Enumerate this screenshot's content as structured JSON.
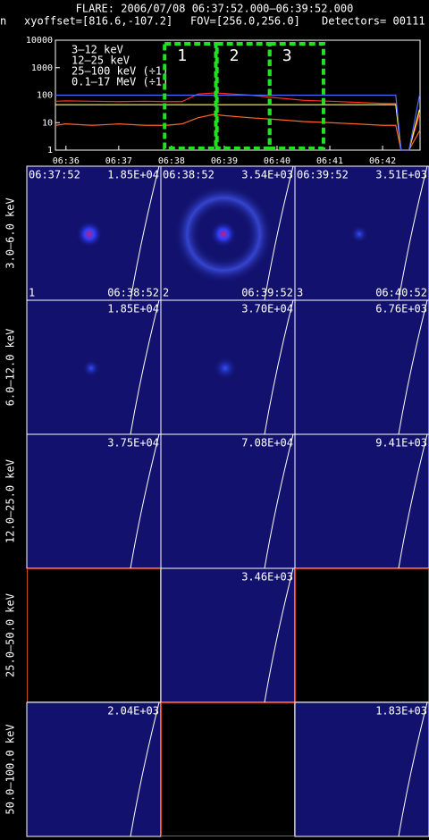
{
  "header": {
    "title": "FLARE: 2006/07/08 06:37:52.000–06:39:52.000",
    "prefix": "n",
    "xyoffset": "xyoffset=[816.6,-107.2]",
    "fov": "FOV=[256.0,256.0]",
    "detectors": "Detectors= 00111"
  },
  "chart_data": {
    "type": "line",
    "log_y": true,
    "xlim": [
      35.8,
      42.71
    ],
    "xticks": [
      {
        "value": 36,
        "label": "06:36"
      },
      {
        "value": 37,
        "label": "06:37"
      },
      {
        "value": 38,
        "label": "06:38"
      },
      {
        "value": 39,
        "label": "06:39"
      },
      {
        "value": 40,
        "label": "06:40"
      },
      {
        "value": 41,
        "label": "06:41"
      },
      {
        "value": 42,
        "label": "06:42"
      }
    ],
    "ylim": [
      1,
      10000
    ],
    "yticks": [
      1,
      10,
      100,
      1000,
      10000
    ],
    "x": [
      35.8,
      36,
      36.5,
      37,
      37.5,
      37.9,
      38.2,
      38.5,
      38.8,
      39,
      39.5,
      40,
      40.5,
      41,
      41.5,
      42,
      42.25,
      42.35,
      42.5,
      42.7
    ],
    "series": [
      {
        "name": "3–12 keV",
        "color": "#ff2a2a",
        "values": [
          60,
          62,
          60,
          58,
          60,
          58,
          58,
          110,
          120,
          115,
          100,
          80,
          65,
          60,
          55,
          50,
          50,
          1,
          1,
          20
        ]
      },
      {
        "name": "12–25 keV",
        "color": "#ff6428",
        "values": [
          8,
          9,
          8,
          9,
          8,
          8,
          9,
          15,
          20,
          18,
          15,
          13,
          11,
          10,
          9,
          8,
          8,
          1,
          1,
          5
        ]
      },
      {
        "name": "25–100 keV (÷1)",
        "color": "#ffff40",
        "values": [
          45,
          45,
          45,
          45,
          45,
          45,
          45,
          45,
          45,
          45,
          45,
          45,
          45,
          45,
          45,
          45,
          45,
          1,
          1,
          30
        ]
      },
      {
        "name": "0.1–17 MeV (÷1)",
        "color": "#4a6aff",
        "values": [
          100,
          100,
          100,
          100,
          100,
          100,
          100,
          100,
          100,
          100,
          100,
          100,
          100,
          100,
          100,
          100,
          100,
          1,
          1,
          100
        ]
      }
    ],
    "intervals": [
      {
        "label": "1",
        "start": 37.87,
        "end": 38.84
      },
      {
        "label": "2",
        "start": 38.86,
        "end": 39.86
      },
      {
        "label": "3",
        "start": 39.86,
        "end": 40.88
      }
    ]
  },
  "image_grid": {
    "row_labels": [
      "3.0–6.0 keV",
      "6.0–12.0 keV",
      "12.0–25.0 keV",
      "25.0–50.0 keV",
      "50.0–100.0 keV"
    ],
    "rows": [
      [
        {
          "peak": "1.85E+04",
          "start": "06:37:52",
          "end": "06:38:52",
          "index": "1"
        },
        {
          "peak": "3.54E+03",
          "start": "06:38:52",
          "end": "06:39:52",
          "index": "2"
        },
        {
          "peak": "3.51E+03",
          "start": "06:39:52",
          "end": "06:40:52",
          "index": "3"
        }
      ],
      [
        {
          "peak": "1.85E+04"
        },
        {
          "peak": "3.70E+04"
        },
        {
          "peak": "6.76E+03"
        }
      ],
      [
        {
          "peak": "3.75E+04"
        },
        {
          "peak": "7.08E+04"
        },
        {
          "peak": "9.41E+03"
        }
      ],
      [
        null,
        {
          "peak": "3.46E+03"
        },
        null
      ],
      [
        {
          "peak": "2.04E+03"
        },
        null,
        {
          "peak": "1.83E+03"
        }
      ]
    ]
  }
}
